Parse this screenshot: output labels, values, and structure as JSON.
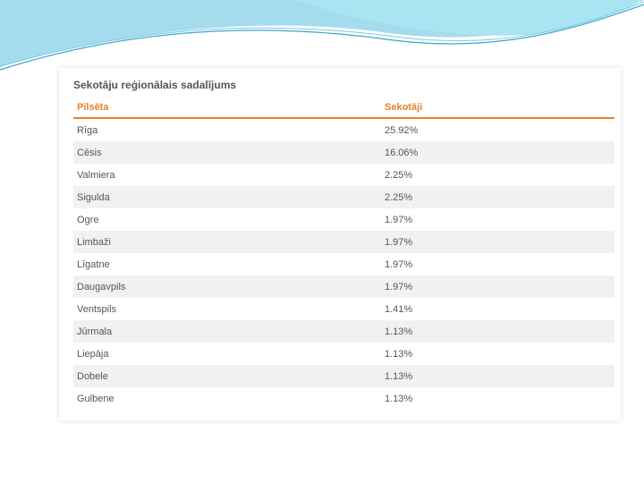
{
  "title": "Sekotāju reģionālais sadalījums",
  "table": {
    "header": [
      "Pilsēta",
      "Sekotāji"
    ],
    "rows": [
      [
        "Rīga",
        "25.92%"
      ],
      [
        "Cēsis",
        "16.06%"
      ],
      [
        "Valmiera",
        "2.25%"
      ],
      [
        "Sigulda",
        "2.25%"
      ],
      [
        "Ogre",
        "1.97%"
      ],
      [
        "Limbaži",
        "1.97%"
      ],
      [
        "Līgatne",
        "1.97%"
      ],
      [
        "Daugavpils",
        "1.97%"
      ],
      [
        "Ventspils",
        "1.41%"
      ],
      [
        "Jūrmala",
        "1.13%"
      ],
      [
        "Liepāja",
        "1.13%"
      ],
      [
        "Dobele",
        "1.13%"
      ],
      [
        "Gulbene",
        "1.13%"
      ]
    ]
  }
}
